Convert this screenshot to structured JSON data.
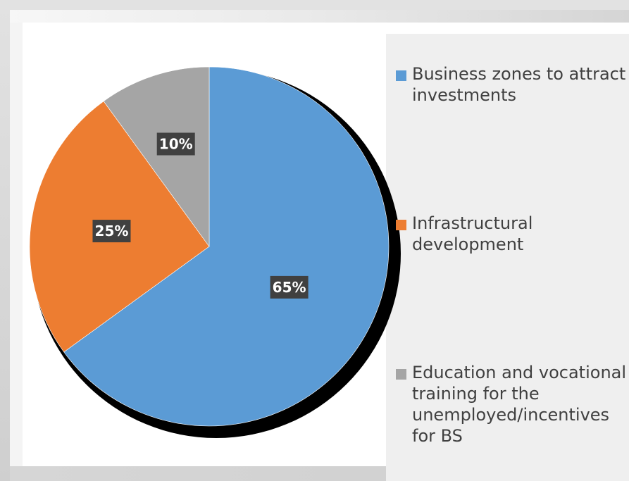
{
  "chart_data": {
    "type": "pie",
    "title": "",
    "categories": [
      "Business zones to attract investments",
      "Infrastructural development",
      "Education and vocational training for the unemployed/incentives for BS"
    ],
    "legend_lines": [
      [
        "Business zones to attract",
        "investments"
      ],
      [
        "Infrastructural",
        "development"
      ],
      [
        "Education and vocational",
        "training for the",
        "unemployed/incentives",
        "for BS"
      ]
    ],
    "values": [
      65,
      25,
      10
    ],
    "data_labels": [
      "65%",
      "25%",
      "10%"
    ],
    "colors": [
      "#5B9BD5",
      "#ED7D31",
      "#A5A5A5"
    ],
    "start_angle_deg": 0,
    "direction": "clockwise",
    "legend_position": "right"
  }
}
